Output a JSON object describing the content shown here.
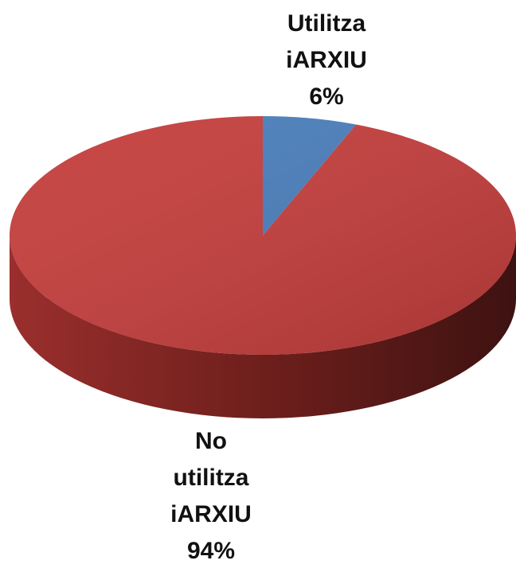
{
  "chart_data": {
    "type": "pie",
    "categories": [
      "Utilitza iARXIU",
      "No utilitza iARXIU"
    ],
    "values": [
      6,
      94
    ],
    "value_labels": [
      "6%",
      "94%"
    ],
    "colors": [
      "#4a7ebb",
      "#c43e3c"
    ]
  }
}
